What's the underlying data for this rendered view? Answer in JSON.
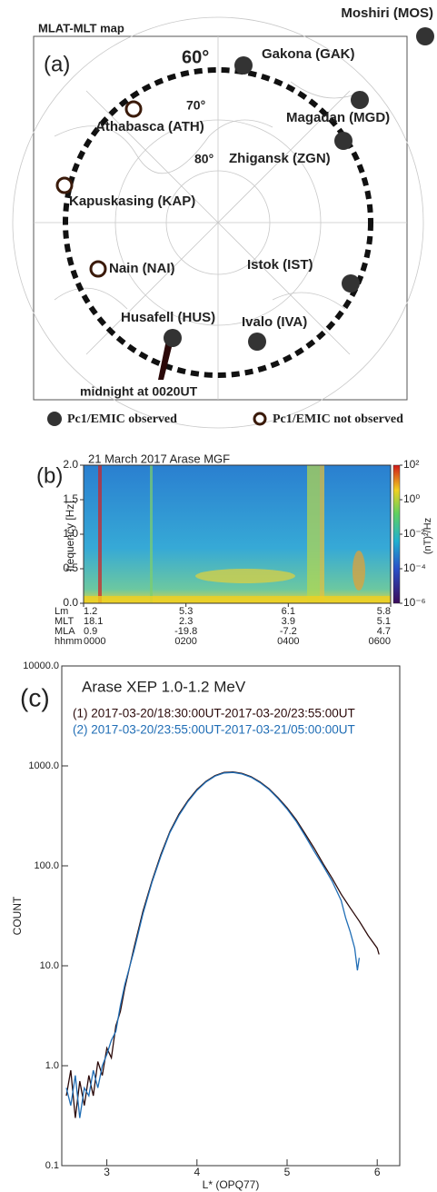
{
  "map": {
    "title": "MLAT-MLT map",
    "panel": "(a)",
    "latitude_labels": [
      "60°",
      "70°",
      "80°"
    ],
    "stations": [
      {
        "name": "Moshiri (MOS)",
        "observed": true
      },
      {
        "name": "Gakona (GAK)",
        "observed": true
      },
      {
        "name": "Magadan (MGD)",
        "observed": true
      },
      {
        "name": "Zhigansk (ZGN)",
        "observed": true
      },
      {
        "name": "Athabasca (ATH)",
        "observed": false
      },
      {
        "name": "Kapuskasing (KAP)",
        "observed": false
      },
      {
        "name": "Nain (NAI)",
        "observed": false
      },
      {
        "name": "Istok (IST)",
        "observed": true
      },
      {
        "name": "Husafell (HUS)",
        "observed": true
      },
      {
        "name": "Ivalo (IVA)",
        "observed": true
      }
    ],
    "annotation": "midnight at 0020UT",
    "legend": [
      {
        "label": "Pc1/EMIC observed",
        "observed": true
      },
      {
        "label": "Pc1/EMIC not observed",
        "observed": false
      }
    ]
  },
  "chart_data": [
    {
      "type": "spectrogram",
      "panel": "(b)",
      "title": "21 March 2017  Arase MGF",
      "ylabel": "frequency [Hz]",
      "ylim": [
        0,
        2
      ],
      "yticks": [
        {
          "value": 0,
          "label": "0.0"
        },
        {
          "value": 0.5,
          "label": "0.5"
        },
        {
          "value": 1,
          "label": "1.0"
        },
        {
          "value": 1.5,
          "label": "1.5"
        },
        {
          "value": 2,
          "label": "2.0"
        }
      ],
      "xlim": [
        0,
        6
      ],
      "xtick_label_name": "hhmm",
      "xticks": [
        {
          "value": 0,
          "label": "0000"
        },
        {
          "value": 2,
          "label": "0200"
        },
        {
          "value": 4,
          "label": "0400"
        },
        {
          "value": 6,
          "label": "0600"
        }
      ],
      "xtick_rows": [
        {
          "name": "Lm",
          "values": [
            1.2,
            5.3,
            6.1,
            5.8
          ]
        },
        {
          "name": "MLT",
          "values": [
            18.1,
            2.3,
            3.9,
            5.1
          ]
        },
        {
          "name": "MLA",
          "values": [
            0.9,
            -19.8,
            -7.2,
            4.7
          ]
        }
      ],
      "colorbar": {
        "label": "(nT)²/Hz",
        "log": true,
        "lim": [
          1e-06,
          100
        ],
        "ticks": [
          {
            "value": 100,
            "label": "10²"
          },
          {
            "value": 1,
            "label": "10⁰"
          },
          {
            "value": 0.01,
            "label": "10⁻²"
          },
          {
            "value": 0.0001,
            "label": "10⁻⁴"
          },
          {
            "value": 1e-06,
            "label": "10⁻⁶"
          }
        ]
      }
    },
    {
      "type": "line",
      "panel": "(c)",
      "title": "Arase XEP  1.0-1.2 MeV",
      "xlabel": "L* (OPQ77)",
      "ylabel": "COUNT",
      "xlim": [
        2.5,
        6.25
      ],
      "xticks": [
        3,
        4,
        5,
        6
      ],
      "ylim": [
        0.1,
        10000
      ],
      "log_y": true,
      "yticks": [
        {
          "value": 0.1,
          "label": "0.1"
        },
        {
          "value": 1,
          "label": "1.0"
        },
        {
          "value": 10,
          "label": "10.0"
        },
        {
          "value": 100,
          "label": "100.0"
        },
        {
          "value": 1000,
          "label": "1000.0"
        },
        {
          "value": 10000,
          "label": "10000.0"
        }
      ],
      "series": [
        {
          "name": "(1) 2017-03-20/18:30:00UT-2017-03-20/23:55:00UT",
          "color": "#2b0a0a",
          "x": [
            2.55,
            2.6,
            2.65,
            2.7,
            2.75,
            2.8,
            2.85,
            2.9,
            2.95,
            3.0,
            3.05,
            3.1,
            3.15,
            3.2,
            3.3,
            3.4,
            3.5,
            3.6,
            3.7,
            3.8,
            3.9,
            4.0,
            4.1,
            4.2,
            4.3,
            4.4,
            4.5,
            4.6,
            4.7,
            4.8,
            4.9,
            5.0,
            5.1,
            5.2,
            5.3,
            5.4,
            5.5,
            5.6,
            5.7,
            5.8,
            5.9,
            6.0,
            6.02
          ],
          "values": [
            0.5,
            0.9,
            0.3,
            0.7,
            0.4,
            0.8,
            0.5,
            1.1,
            0.8,
            1.5,
            1.2,
            2.5,
            3.5,
            6,
            15,
            35,
            70,
            130,
            220,
            330,
            450,
            580,
            700,
            800,
            860,
            870,
            840,
            780,
            690,
            590,
            480,
            380,
            290,
            210,
            150,
            105,
            75,
            52,
            38,
            28,
            20,
            15,
            13
          ]
        },
        {
          "name": "(2) 2017-03-20/23:55:00UT-2017-03-21/05:00:00UT",
          "color": "#1f6db5",
          "x": [
            2.55,
            2.6,
            2.65,
            2.7,
            2.75,
            2.8,
            2.85,
            2.9,
            2.95,
            3.0,
            3.05,
            3.1,
            3.15,
            3.2,
            3.3,
            3.4,
            3.5,
            3.6,
            3.7,
            3.8,
            3.9,
            4.0,
            4.1,
            4.2,
            4.3,
            4.4,
            4.5,
            4.6,
            4.7,
            4.8,
            4.9,
            5.0,
            5.1,
            5.2,
            5.3,
            5.4,
            5.5,
            5.6,
            5.65,
            5.7,
            5.75,
            5.78,
            5.8
          ],
          "values": [
            0.6,
            0.4,
            0.8,
            0.3,
            0.6,
            0.5,
            0.9,
            0.6,
            1.0,
            1.3,
            1.8,
            2.2,
            4,
            6.5,
            14,
            33,
            68,
            125,
            215,
            320,
            440,
            570,
            690,
            790,
            850,
            860,
            830,
            770,
            680,
            580,
            470,
            370,
            280,
            200,
            140,
            100,
            70,
            45,
            30,
            22,
            15,
            9,
            12
          ]
        }
      ]
    }
  ]
}
